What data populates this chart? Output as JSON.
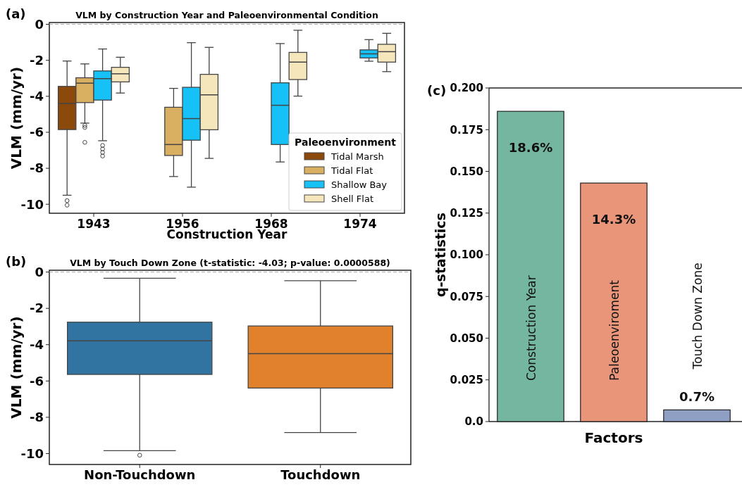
{
  "chart_data": [
    {
      "type": "box",
      "title": "VLM by Construction Year and Paleoenvironmental Condition",
      "xlabel": "Construction Year",
      "ylabel": "VLM (mm/yr)",
      "legend_title": "Paleoenvironment",
      "legend": "bottom right",
      "annotations": [
        "(a)"
      ],
      "categories": [
        "1943",
        "1956",
        "1968",
        "1974"
      ],
      "ylim": [
        -10.5,
        0.1
      ],
      "yticks": [
        0,
        -2,
        -4,
        -6,
        -8,
        -10
      ],
      "ref_lines": [
        {
          "axis": "y",
          "value": 0,
          "color": "#aaaaaa",
          "line_style": "dashed"
        }
      ],
      "series": [
        {
          "name": "Tidal Marsh",
          "color": "#8b4a0c",
          "boxes": [
            {
              "low": -9.5,
              "q1": -5.85,
              "median": -4.4,
              "q3": -3.45,
              "high": -2.04,
              "outliers": [
                -9.8,
                -10.05
              ]
            },
            null,
            null,
            null
          ]
        },
        {
          "name": "Tidal Flat",
          "color": "#d9b062",
          "boxes": [
            {
              "low": -5.49,
              "q1": -4.35,
              "median": -3.27,
              "q3": -2.97,
              "high": -2.2,
              "outliers": [
                -5.62,
                -5.73,
                -6.56
              ]
            },
            {
              "low": -8.46,
              "q1": -7.29,
              "median": -6.68,
              "q3": -4.61,
              "high": -3.56
            },
            null,
            null
          ]
        },
        {
          "name": "Shallow Bay",
          "color": "#16c1f7",
          "boxes": [
            {
              "low": -6.47,
              "q1": -4.21,
              "median": -3.02,
              "q3": -2.59,
              "high": -1.37,
              "outliers": [
                -6.73,
                -6.93,
                -7.12,
                -7.32
              ]
            },
            {
              "low": -9.05,
              "q1": -6.44,
              "median": -5.24,
              "q3": -3.5,
              "high": -1.02
            },
            {
              "low": -7.65,
              "q1": -6.68,
              "median": -4.5,
              "q3": -3.25,
              "high": -1.07
            },
            {
              "low": -2.05,
              "q1": -1.87,
              "median": -1.64,
              "q3": -1.42,
              "high": -0.85
            }
          ]
        },
        {
          "name": "Shell Flat",
          "color": "#f6e6bc",
          "boxes": [
            {
              "low": -3.82,
              "q1": -3.2,
              "median": -2.75,
              "q3": -2.39,
              "high": -1.83
            },
            {
              "low": -7.45,
              "q1": -5.86,
              "median": -3.92,
              "q3": -2.78,
              "high": -1.28
            },
            {
              "low": -3.99,
              "q1": -3.07,
              "median": -2.1,
              "q3": -1.56,
              "high": -0.33
            },
            {
              "low": -2.63,
              "q1": -2.1,
              "median": -1.52,
              "q3": -1.11,
              "high": -0.5
            }
          ]
        }
      ]
    },
    {
      "type": "box",
      "title": "VLM by Touch Down Zone (t-statistic: -4.03; p-value: 0.0000588)",
      "ylabel": "VLM (mm/yr)",
      "annotations": [
        "(b)"
      ],
      "categories": [
        "Non-Touchdown",
        "Touchdown"
      ],
      "ylim": [
        -10.6,
        0.1
      ],
      "yticks": [
        0,
        -2,
        -4,
        -6,
        -8,
        -10
      ],
      "ref_lines": [
        {
          "axis": "y",
          "value": 0,
          "color": "#aaaaaa",
          "line_style": "dashed"
        }
      ],
      "colors": [
        "#3274a1",
        "#e1812c"
      ],
      "boxes": [
        {
          "low": -9.84,
          "q1": -5.64,
          "median": -3.79,
          "q3": -2.76,
          "high": -0.34,
          "outliers": [
            -10.09
          ]
        },
        {
          "low": -8.84,
          "q1": -6.39,
          "median": -4.49,
          "q3": -2.97,
          "high": -0.48
        }
      ]
    },
    {
      "type": "bar",
      "xlabel": "Factors",
      "ylabel": "q-statistics",
      "annotations": [
        "(c)"
      ],
      "categories": [
        "Construction Year",
        "Paleoenviroment",
        "Touch Down Zone"
      ],
      "values": [
        0.186,
        0.143,
        0.007
      ],
      "value_labels": [
        "18.6%",
        "14.3%",
        "0.7%"
      ],
      "colors": [
        "#74b6a0",
        "#e8957a",
        "#8f9fc4"
      ],
      "ylim": [
        0,
        0.2
      ],
      "yticks": [
        {
          "value": 0,
          "label": "0.0"
        },
        0.025,
        {
          "value": 0.05,
          "label": "0.050"
        },
        0.075,
        {
          "value": 0.1,
          "label": "0.100"
        },
        0.125,
        {
          "value": 0.15,
          "label": "0.150"
        },
        0.175,
        {
          "value": 0.2,
          "label": "0.200"
        }
      ]
    }
  ]
}
